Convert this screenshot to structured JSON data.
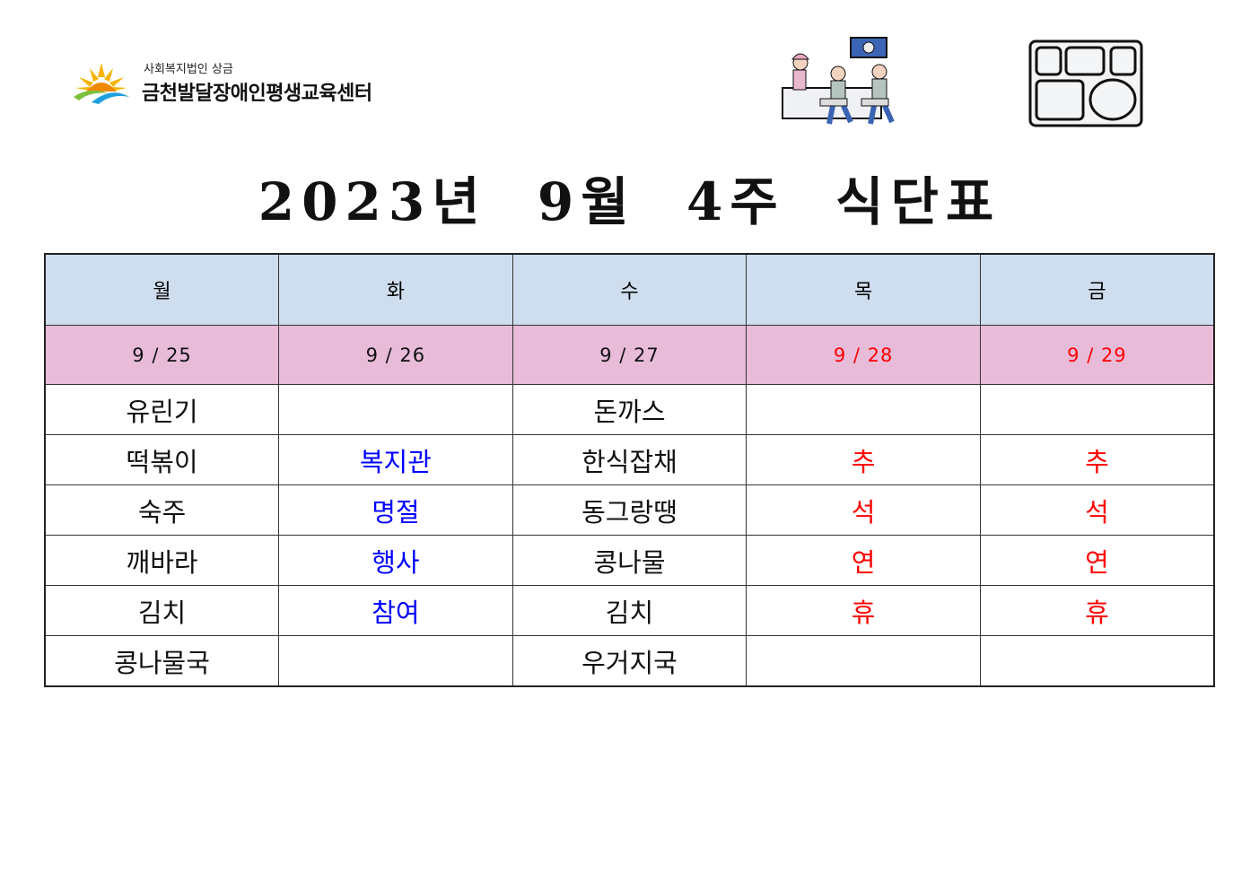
{
  "header": {
    "org_sub": "사회복지법인 상금",
    "org_name": "금천발달장애인평생교육센터",
    "icons": [
      "sunflower-logo-icon",
      "meal-serving-icon",
      "meal-tray-icon"
    ]
  },
  "title": "2023년  9월  4주  식단표",
  "colors": {
    "header_bg": "#cfdeee",
    "date_bg": "#e8bcd9",
    "blue": "#0000ff",
    "red": "#ff0000"
  },
  "table": {
    "days": [
      "월",
      "화",
      "수",
      "목",
      "금"
    ],
    "dates": [
      {
        "text": "9 / 25",
        "color": "#111111"
      },
      {
        "text": "9 / 26",
        "color": "#111111"
      },
      {
        "text": "9 / 27",
        "color": "#111111"
      },
      {
        "text": "9 / 28",
        "color": "#ff0000"
      },
      {
        "text": "9 / 29",
        "color": "#ff0000"
      }
    ],
    "column_colors": [
      "#111111",
      "#0000ff",
      "#111111",
      "#ff0000",
      "#ff0000"
    ],
    "rows": [
      [
        "유린기",
        "",
        "돈까스",
        "",
        ""
      ],
      [
        "떡볶이",
        "복지관",
        "한식잡채",
        "추",
        "추"
      ],
      [
        "숙주",
        "명절",
        "동그랑땡",
        "석",
        "석"
      ],
      [
        "깨바라",
        "행사",
        "콩나물",
        "연",
        "연"
      ],
      [
        "김치",
        "참여",
        "김치",
        "휴",
        "휴"
      ],
      [
        "콩나물국",
        "",
        "우거지국",
        "",
        ""
      ]
    ]
  }
}
